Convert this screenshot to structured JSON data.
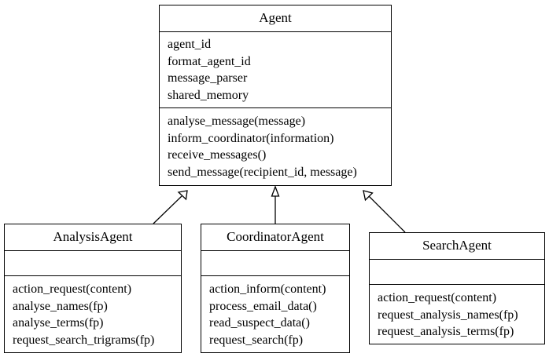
{
  "classes": {
    "agent": {
      "name": "Agent",
      "attributes": [
        "agent_id",
        "format_agent_id",
        "message_parser",
        "shared_memory"
      ],
      "methods": [
        "analyse_message(message)",
        "inform_coordinator(information)",
        "receive_messages()",
        "send_message(recipient_id, message)"
      ]
    },
    "analysis": {
      "name": "AnalysisAgent",
      "attributes": [],
      "methods": [
        "action_request(content)",
        "analyse_names(fp)",
        "analyse_terms(fp)",
        "request_search_trigrams(fp)"
      ]
    },
    "coordinator": {
      "name": "CoordinatorAgent",
      "attributes": [],
      "methods": [
        "action_inform(content)",
        "process_email_data()",
        "read_suspect_data()",
        "request_search(fp)"
      ]
    },
    "search": {
      "name": "SearchAgent",
      "attributes": [],
      "methods": [
        "action_request(content)",
        "request_analysis_names(fp)",
        "request_analysis_terms(fp)"
      ]
    }
  },
  "relationships": [
    {
      "from": "AnalysisAgent",
      "to": "Agent",
      "type": "inheritance"
    },
    {
      "from": "CoordinatorAgent",
      "to": "Agent",
      "type": "inheritance"
    },
    {
      "from": "SearchAgent",
      "to": "Agent",
      "type": "inheritance"
    }
  ]
}
